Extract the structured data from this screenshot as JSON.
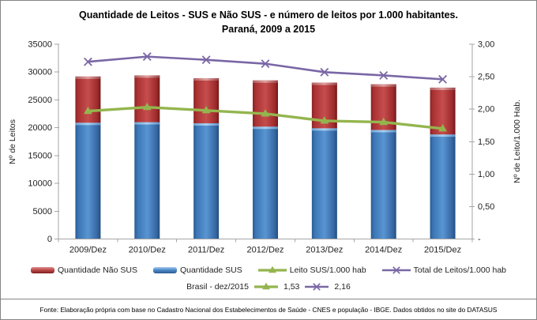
{
  "title": "Quantidade de Leitos - SUS e Não SUS - e número de leitos por 1.000 habitantes. Paraná, 2009 a 2015",
  "footer": "Fonte: Elaboração própria com base no Cadastro Nacional dos Estabelecimentos de Saúde - CNES e população - IBGE. Dados obtidos no site do DATASUS",
  "annotation": {
    "label": "Brasil - dez/2015",
    "sus_value": "1,53",
    "total_value": "2,16"
  },
  "legend": {
    "items": [
      {
        "key": "quantidade-nao-sus",
        "label": "Quantidade Não SUS",
        "marker": "bar",
        "color": "#B93B3C"
      },
      {
        "key": "quantidade-sus",
        "label": "Quantidade SUS",
        "marker": "bar",
        "color": "#4B87C8"
      },
      {
        "key": "leito-sus-1000-hab",
        "label": "Leito SUS/1.000 hab",
        "marker": "line-triangle",
        "color": "#94B54E"
      },
      {
        "key": "total-leitos-1000-hab",
        "label": "Total de Leitos/1.000 hab",
        "marker": "line-x",
        "color": "#7A67A5"
      }
    ]
  },
  "colors": {
    "sus_bar": "#4B87C8",
    "nao_sus_bar": "#B93B3C",
    "sus_rate_line": "#94B54E",
    "total_rate_line": "#7A67A5",
    "axis": "#A6A6A6",
    "border": "#848484"
  },
  "chart_data": {
    "type": "bar",
    "subtype": "stacked-columns-with-lines",
    "title": "Quantidade de Leitos - SUS e Não SUS - e número de leitos por 1.000 habitantes. Paraná, 2009 a 2015",
    "categories": [
      "2009/Dez",
      "2010/Dez",
      "2011/Dez",
      "2012/Dez",
      "2013/Dez",
      "2014/Dez",
      "2015/Dez"
    ],
    "series": [
      {
        "name": "Quantidade SUS",
        "type": "bar",
        "stack_order": 1,
        "axis": "left",
        "color": "#4B87C8",
        "values": [
          20900,
          21000,
          20800,
          20200,
          19900,
          19600,
          18800
        ]
      },
      {
        "name": "Quantidade Não SUS",
        "type": "bar",
        "stack_order": 2,
        "axis": "left",
        "color": "#B93B3C",
        "values": [
          8300,
          8400,
          8100,
          8300,
          8200,
          8200,
          8400
        ]
      },
      {
        "name": "Leito SUS/1.000 hab",
        "type": "line",
        "marker": "triangle",
        "axis": "right",
        "color": "#94B54E",
        "values": [
          1.97,
          2.03,
          1.98,
          1.93,
          1.82,
          1.8,
          1.7
        ]
      },
      {
        "name": "Total de Leitos/1.000 hab",
        "type": "line",
        "marker": "x",
        "axis": "right",
        "color": "#7A67A5",
        "values": [
          2.73,
          2.81,
          2.76,
          2.7,
          2.57,
          2.52,
          2.46
        ]
      }
    ],
    "left_axis": {
      "title": "Nº de Leitos",
      "min": 0,
      "max": 35000,
      "step": 5000,
      "tick_labels": [
        "0",
        "5000",
        "10000",
        "15000",
        "20000",
        "25000",
        "30000",
        "35000"
      ]
    },
    "right_axis": {
      "title": "Nº de Leito/1.000 Hab.",
      "min": 0,
      "max": 3,
      "step": 0.5,
      "tick_labels": [
        "-",
        "0,50",
        "1,00",
        "1,50",
        "2,00",
        "2,50",
        "3,00"
      ]
    },
    "grid": false,
    "legend_position": "bottom",
    "reference_values": {
      "label": "Brasil - dez/2015",
      "leito_sus_1000_hab": "1,53",
      "total_leitos_1000_hab": "2,16"
    }
  }
}
